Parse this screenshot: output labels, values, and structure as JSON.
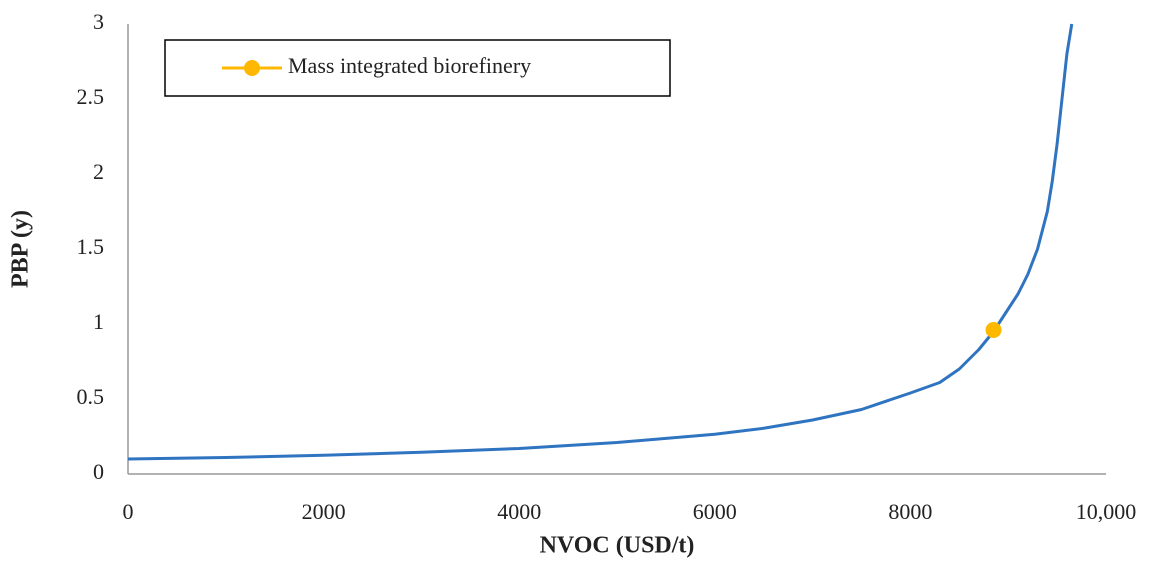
{
  "chart_data": {
    "type": "line",
    "xlabel": "NVOC (USD/t)",
    "ylabel": "PBP (y)",
    "xlim": [
      0,
      10000
    ],
    "ylim": [
      0,
      3
    ],
    "xticks": [
      0,
      2000,
      4000,
      6000,
      8000,
      {
        "value": 10000,
        "label": "10,000"
      }
    ],
    "yticks": [
      0,
      0.5,
      1,
      1.5,
      2,
      2.5,
      3
    ],
    "grid": false,
    "legend": "upper left",
    "series": [
      {
        "color": "#2f74c0",
        "x": [
          0,
          1000,
          2000,
          3000,
          4000,
          5000,
          6000,
          6500,
          7000,
          7500,
          8000,
          8300,
          8500,
          8700,
          8850,
          9000,
          9100,
          9200,
          9300,
          9400,
          9450,
          9500,
          9550,
          9600,
          9650
        ],
        "values": [
          0.1,
          0.11,
          0.125,
          0.145,
          0.17,
          0.21,
          0.265,
          0.305,
          0.36,
          0.43,
          0.54,
          0.61,
          0.7,
          0.83,
          0.95,
          1.1,
          1.2,
          1.33,
          1.5,
          1.75,
          1.95,
          2.2,
          2.5,
          2.8,
          3.0
        ]
      },
      {
        "name": "Mass integrated biorefinery",
        "color": "#ffb800",
        "x": [
          8850
        ],
        "values": [
          0.96
        ],
        "marker": true
      }
    ]
  }
}
